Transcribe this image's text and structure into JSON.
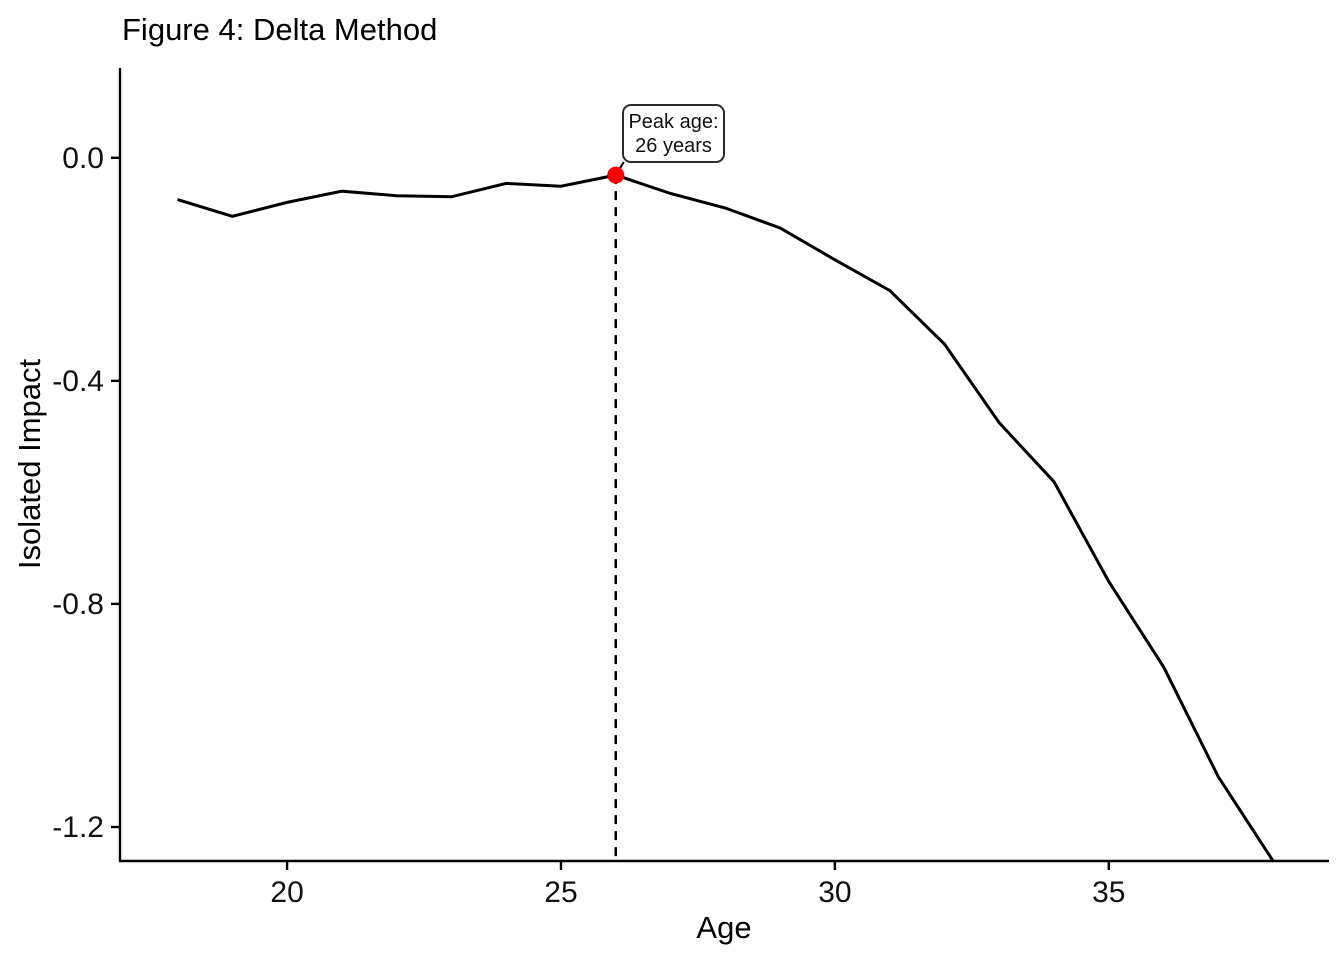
{
  "title": "Figure 4: Delta Method",
  "annotation": {
    "line1": "Peak age:",
    "line2": "26 years"
  },
  "colors": {
    "line": "#000000",
    "peak_point": "#ff0000",
    "axis": "#000000",
    "tick_text": "#111111",
    "vline": "#000000",
    "annotation_border": "#2b2b2b",
    "annotation_bg": "#ffffff"
  },
  "chart_data": {
    "type": "line",
    "title": "Figure 4: Delta Method",
    "xlabel": "Age",
    "ylabel": "Isolated Impact",
    "x": [
      18,
      19,
      20,
      21,
      22,
      23,
      24,
      25,
      26,
      27,
      28,
      29,
      30,
      31,
      32,
      33,
      34,
      35,
      36,
      37,
      38
    ],
    "y": [
      -0.075,
      -0.105,
      -0.08,
      -0.06,
      -0.068,
      -0.07,
      -0.046,
      -0.051,
      -0.031,
      -0.064,
      -0.09,
      -0.126,
      -0.183,
      -0.238,
      -0.334,
      -0.475,
      -0.581,
      -0.76,
      -0.913,
      -1.11,
      -1.261
    ],
    "x_ticks": {
      "values": [
        20,
        25,
        30,
        35
      ],
      "labels": [
        "20",
        "25",
        "30",
        "35"
      ]
    },
    "y_ticks": {
      "values": [
        0.0,
        -0.4,
        -0.8,
        -1.2
      ],
      "labels": [
        "0.0",
        "-0.4",
        "-0.8",
        "-1.2"
      ]
    },
    "xlim": [
      16.95,
      39.02
    ],
    "ylim": [
      -1.261,
      0.161
    ],
    "grid": false,
    "legend_position": "none",
    "peak": {
      "age": 26,
      "value": -0.031
    },
    "vline": {
      "x": 26,
      "style": "dashed"
    }
  }
}
